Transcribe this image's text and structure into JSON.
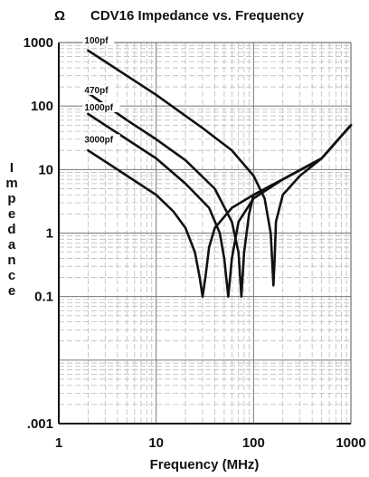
{
  "chart_data": {
    "type": "line",
    "title": "CDV16 Impedance vs. Frequency",
    "unit_label": "Ω",
    "xlabel": "Frequency (MHz)",
    "ylabel": "Impedance",
    "x_scale": "log",
    "y_scale": "log",
    "xlim": [
      1,
      1000
    ],
    "ylim": [
      0.001,
      1000
    ],
    "grid": true,
    "x_ticks": [
      "1",
      "10",
      "100",
      "1000"
    ],
    "y_ticks": [
      "1000",
      "100",
      "10",
      "1",
      "0.1",
      ".001"
    ],
    "series": [
      {
        "name": "100pf",
        "label_at": [
          2,
          900
        ],
        "x": [
          2,
          5,
          10,
          30,
          60,
          100,
          130,
          150,
          155,
          160,
          165,
          170,
          200,
          300,
          500,
          1000
        ],
        "y": [
          750,
          300,
          150,
          45,
          20,
          8,
          3.5,
          1,
          0.4,
          0.15,
          0.4,
          1.5,
          4,
          8,
          15,
          50
        ]
      },
      {
        "name": "470pf",
        "label_at": [
          2,
          150
        ],
        "x": [
          2,
          5,
          10,
          20,
          40,
          60,
          70,
          75,
          80,
          90,
          100,
          200,
          500,
          1000
        ],
        "y": [
          160,
          60,
          30,
          14,
          5,
          1.5,
          0.5,
          0.1,
          0.5,
          2,
          4,
          7,
          15,
          50
        ]
      },
      {
        "name": "1000pf",
        "label_at": [
          2,
          80
        ],
        "x": [
          2,
          5,
          10,
          20,
          35,
          45,
          50,
          55,
          60,
          70,
          100,
          200,
          500,
          1000
        ],
        "y": [
          75,
          30,
          15,
          6,
          2.5,
          1,
          0.4,
          0.1,
          0.4,
          1.5,
          3.5,
          7,
          15,
          50
        ]
      },
      {
        "name": "3000pf",
        "label_at": [
          2,
          25
        ],
        "x": [
          2,
          5,
          10,
          15,
          20,
          25,
          28,
          30,
          32,
          35,
          40,
          60,
          100,
          200,
          500,
          1000
        ],
        "y": [
          20,
          8,
          4,
          2.2,
          1.2,
          0.5,
          0.2,
          0.1,
          0.2,
          0.6,
          1.2,
          2.5,
          4,
          7,
          15,
          50
        ]
      }
    ]
  }
}
